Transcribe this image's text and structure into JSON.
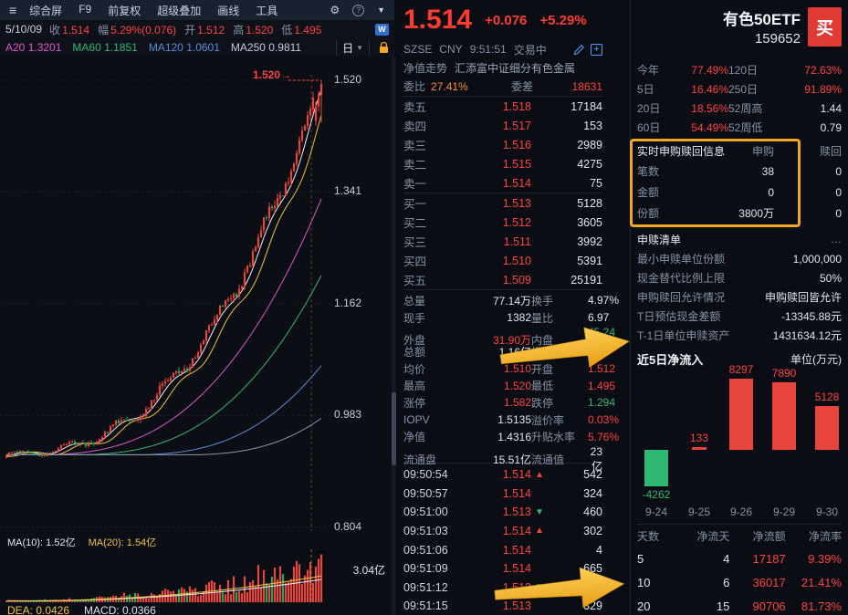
{
  "colors": {
    "up": "#ff4242",
    "down": "#2eb872",
    "accent": "#f5a623",
    "big_price": "#ff3b30"
  },
  "toolbar": {
    "menu_icon": "≡",
    "items": [
      "综合屏",
      "F9",
      "前复权",
      "超级叠加",
      "画线",
      "工具"
    ],
    "gear": "⚙",
    "help": "?",
    "chevron": "▼"
  },
  "info_bar": {
    "date": "5/10/09",
    "pairs": [
      {
        "label": "收",
        "value": "1.514",
        "cls": "red"
      },
      {
        "label": "幅",
        "value": "5.29%(0.076)",
        "cls": "red"
      },
      {
        "label": "开",
        "value": "1.512",
        "cls": "red"
      },
      {
        "label": "高",
        "value": "1.520",
        "cls": "red"
      },
      {
        "label": "低",
        "value": "1.495",
        "cls": "red"
      }
    ],
    "badge": "W"
  },
  "ma_bar": {
    "items": [
      {
        "label": "A20",
        "value": "1.3201",
        "cls": "magenta"
      },
      {
        "label": "MA60",
        "value": "1.1851",
        "cls": "green"
      },
      {
        "label": "MA120",
        "value": "1.0601",
        "cls": "blue"
      },
      {
        "label": "MA250",
        "value": "0.9811",
        "cls": "silver"
      }
    ],
    "period": "日",
    "chevron": "▼"
  },
  "chart": {
    "y_labels": [
      "1.520",
      "1.341",
      "1.162",
      "0.983",
      "0.804"
    ],
    "price_marker": "1.520→",
    "vol_ma10_label": "MA(10): 1.52亿",
    "vol_ma20_label": "MA(20): 1.54亿",
    "vol_axis_label": "3.04亿",
    "macd_dea": "DEA: 0.0426",
    "macd_macd": "MACD: 0.0366"
  },
  "quote": {
    "price": "1.514",
    "change": "+0.076",
    "change_pct": "+5.29%",
    "exchange": "SZSE",
    "currency": "CNY",
    "time": "9:51:51",
    "status": "交易中",
    "nav_label": "净值走势",
    "nav_name": "汇添富中证细分有色金属",
    "weibi_label": "委比",
    "weibi_value": "27.41%",
    "weicha_label": "委差",
    "weicha_value": "18631",
    "asks": [
      {
        "label": "卖五",
        "price": "1.518",
        "vol": "17184"
      },
      {
        "label": "卖四",
        "price": "1.517",
        "vol": "153"
      },
      {
        "label": "卖三",
        "price": "1.516",
        "vol": "2989"
      },
      {
        "label": "卖二",
        "price": "1.515",
        "vol": "4275"
      },
      {
        "label": "卖一",
        "price": "1.514",
        "vol": "75"
      }
    ],
    "bids": [
      {
        "label": "买一",
        "price": "1.513",
        "vol": "5128"
      },
      {
        "label": "买二",
        "price": "1.512",
        "vol": "3605"
      },
      {
        "label": "买三",
        "price": "1.511",
        "vol": "3992"
      },
      {
        "label": "买四",
        "price": "1.510",
        "vol": "5391"
      },
      {
        "label": "买五",
        "price": "1.509",
        "vol": "25191"
      }
    ],
    "stats": [
      {
        "l1": "总量",
        "v1": "77.14万",
        "c1": "white",
        "l2": "换手",
        "v2": "4.97%",
        "c2": "white"
      },
      {
        "l1": "现手",
        "v1": "1382",
        "c1": "white",
        "l2": "量比",
        "v2": "6.97",
        "c2": "white"
      },
      {
        "l1": "外盘",
        "v1": "31.90万",
        "c1": "red",
        "l2": "内盘",
        "v2": "45.24万",
        "c2": "green"
      },
      {
        "l1": "总额",
        "v1": "1.16亿",
        "c1": "white",
        "l2": "振幅",
        "v2": "%",
        "c2": "white"
      },
      {
        "l1": "均价",
        "v1": "1.510",
        "c1": "red",
        "l2": "开盘",
        "v2": "1.512",
        "c2": "red"
      },
      {
        "l1": "最高",
        "v1": "1.520",
        "c1": "red",
        "l2": "最低",
        "v2": "1.495",
        "c2": "red"
      },
      {
        "l1": "涨停",
        "v1": "1.582",
        "c1": "red",
        "l2": "跌停",
        "v2": "1.294",
        "c2": "green"
      },
      {
        "l1": "IOPV",
        "v1": "1.5135",
        "c1": "white",
        "l2": "溢价率",
        "v2": "0.03%",
        "c2": "red"
      },
      {
        "l1": "净值",
        "v1": "1.4316",
        "c1": "white",
        "l2": "升贴水率",
        "v2": "5.76%",
        "c2": "red"
      },
      {
        "l1": "流通盘",
        "v1": "15.51亿",
        "c1": "white",
        "l2": "流通值",
        "v2": "23亿",
        "c2": "white"
      }
    ],
    "ticks": [
      {
        "time": "09:50:54",
        "price": "1.514",
        "pc": "red",
        "mark": "▲",
        "mc": "red",
        "vol": "542"
      },
      {
        "time": "09:50:57",
        "price": "1.514",
        "pc": "red",
        "mark": "",
        "mc": "",
        "vol": "324"
      },
      {
        "time": "09:51:00",
        "price": "1.513",
        "pc": "red",
        "mark": "▼",
        "mc": "green",
        "vol": "460"
      },
      {
        "time": "09:51:03",
        "price": "1.514",
        "pc": "red",
        "mark": "▲",
        "mc": "red",
        "vol": "302"
      },
      {
        "time": "09:51:06",
        "price": "1.514",
        "pc": "red",
        "mark": "",
        "mc": "",
        "vol": "4"
      },
      {
        "time": "09:51:09",
        "price": "1.514",
        "pc": "red",
        "mark": "",
        "mc": "",
        "vol": "665"
      },
      {
        "time": "09:51:12",
        "price": "1.513",
        "pc": "red",
        "mark": "▼",
        "mc": "green",
        "vol": "440"
      },
      {
        "time": "09:51:15",
        "price": "1.513",
        "pc": "red",
        "mark": "",
        "mc": "",
        "vol": "329"
      }
    ]
  },
  "right": {
    "name": "有色50ETF",
    "code": "159652",
    "buy_label": "买",
    "perf": [
      {
        "l1": "今年",
        "v1": "77.49%",
        "c1": "red",
        "l2": "120日",
        "v2": "72.63%",
        "c2": "red"
      },
      {
        "l1": "5日",
        "v1": "16.46%",
        "c1": "red",
        "l2": "250日",
        "v2": "91.89%",
        "c2": "red"
      },
      {
        "l1": "20日",
        "v1": "18.56%",
        "c1": "red",
        "l2": "52周高",
        "v2": "1.44",
        "c2": "white"
      },
      {
        "l1": "60日",
        "v1": "54.49%",
        "c1": "red",
        "l2": "52周低",
        "v2": "0.79",
        "c2": "white"
      }
    ],
    "subscription": {
      "title": "实时申购赎回信息",
      "col_subscribe": "申购",
      "col_redeem": "赎回",
      "rows": [
        {
          "label": "笔数",
          "v1": "38",
          "v2": "0"
        },
        {
          "label": "金额",
          "v1": "0",
          "v2": "0"
        },
        {
          "label": "份额",
          "v1": "3800万",
          "v2": "0"
        }
      ]
    },
    "shenshu": {
      "title": "申赎清单",
      "more": "…",
      "rows": [
        {
          "label": "最小申赎单位份额",
          "value": "1,000,000"
        },
        {
          "label": "现金替代比例上限",
          "value": "50%"
        },
        {
          "label": "申购赎回允许情况",
          "value": "申购赎回皆允许"
        },
        {
          "label": "T日预估现金差额",
          "value": "-13345.88元"
        },
        {
          "label": "T-1日单位申赎资产",
          "value": "1431634.12元"
        }
      ]
    },
    "flow_chart": {
      "type": "bar",
      "title": "近5日净流入",
      "unit": "单位(万元)",
      "categories": [
        "9-24",
        "9-25",
        "9-26",
        "9-29",
        "9-30"
      ],
      "values": [
        -4262,
        133,
        8297,
        7890,
        5128
      ]
    },
    "flow_table": {
      "headers": [
        "天数",
        "净流天",
        "净流额",
        "净流率"
      ],
      "rows": [
        [
          "5",
          "4",
          "17187",
          "9.39%"
        ],
        [
          "10",
          "6",
          "36017",
          "21.41%"
        ],
        [
          "20",
          "15",
          "90706",
          "81.73%"
        ]
      ]
    }
  }
}
